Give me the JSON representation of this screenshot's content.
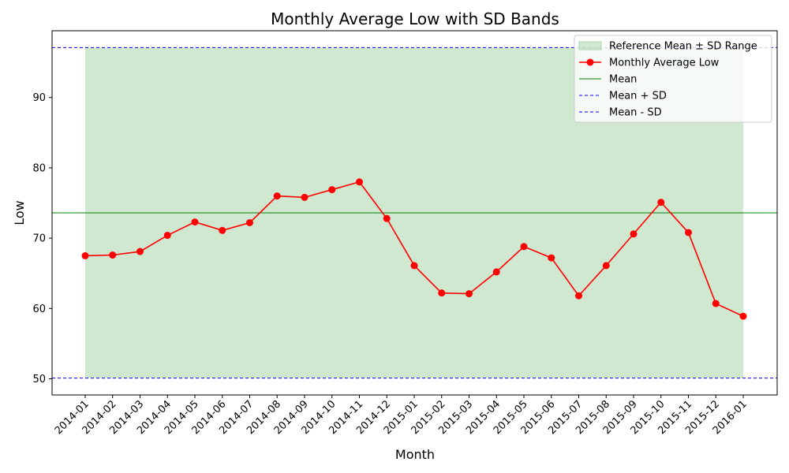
{
  "chart_data": {
    "type": "line",
    "title": "Monthly Average Low with SD Bands",
    "xlabel": "Month",
    "ylabel": "Low",
    "categories": [
      "2014-01",
      "2014-02",
      "2014-03",
      "2014-04",
      "2014-05",
      "2014-06",
      "2014-07",
      "2014-08",
      "2014-09",
      "2014-10",
      "2014-11",
      "2014-12",
      "2015-01",
      "2015-02",
      "2015-03",
      "2015-04",
      "2015-05",
      "2015-06",
      "2015-07",
      "2015-08",
      "2015-09",
      "2015-10",
      "2015-11",
      "2015-12",
      "2016-01"
    ],
    "series": [
      {
        "name": "Monthly Average Low",
        "color": "#ff0000",
        "values": [
          67.5,
          67.6,
          68.1,
          70.4,
          72.3,
          71.1,
          72.2,
          76.0,
          75.8,
          76.9,
          78.0,
          72.8,
          66.1,
          62.2,
          62.1,
          65.2,
          68.8,
          67.2,
          61.8,
          66.1,
          70.6,
          75.1,
          70.8,
          60.7,
          58.9
        ]
      }
    ],
    "reference": {
      "mean": 73.6,
      "mean_plus_sd": 97.1,
      "mean_minus_sd": 50.1,
      "band_color": "#a9d4a9",
      "mean_color": "#008000",
      "sd_color": "#0000ff"
    },
    "yticks": [
      50,
      60,
      70,
      80,
      90
    ],
    "ylim": [
      47.7,
      99.5
    ],
    "grid": false,
    "legend": {
      "placement": "top-right",
      "entries": [
        {
          "label": "Reference Mean ± SD Range",
          "kind": "band"
        },
        {
          "label": "Monthly Average Low",
          "kind": "marker-line"
        },
        {
          "label": "Mean",
          "kind": "mean-line"
        },
        {
          "label": "Mean + SD",
          "kind": "dashed-line"
        },
        {
          "label": "Mean - SD",
          "kind": "dashed-line"
        }
      ]
    }
  }
}
